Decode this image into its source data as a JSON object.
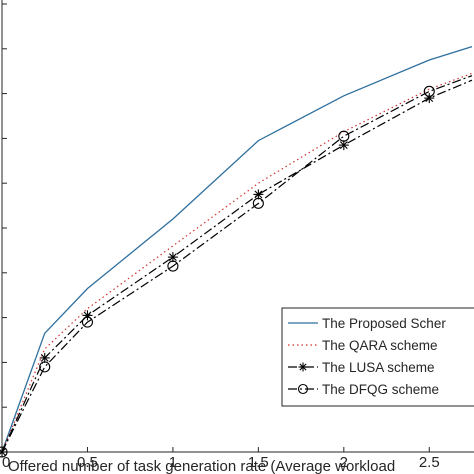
{
  "chart_data": {
    "type": "line",
    "title": "",
    "xlabel": "Offered number of task generation rate (Average workload",
    "ylabel": "",
    "x_ticks": [
      "0",
      "0.5",
      "1",
      "1.5",
      "2",
      "2.5"
    ],
    "xlim": [
      0,
      2.75
    ],
    "ylim": [
      0,
      1.0
    ],
    "grid": false,
    "legend_position": "bottom-right",
    "series": [
      {
        "name": "The Proposed Scher",
        "color": "#2e6f9e",
        "style": "solid",
        "marker": "none",
        "x": [
          0,
          0.25,
          0.5,
          1.0,
          1.5,
          2.0,
          2.5,
          2.75
        ],
        "y": [
          0.0,
          0.265,
          0.365,
          0.52,
          0.695,
          0.795,
          0.875,
          0.905
        ]
      },
      {
        "name": "The QARA scheme",
        "color": "#d03030",
        "style": "dotted",
        "marker": "none",
        "x": [
          0,
          0.25,
          0.5,
          1.0,
          1.5,
          2.0,
          2.5,
          2.75
        ],
        "y": [
          0.0,
          0.23,
          0.32,
          0.46,
          0.6,
          0.715,
          0.81,
          0.845
        ]
      },
      {
        "name": "The LUSA scheme",
        "color": "#000000",
        "style": "dashdot",
        "marker": "star",
        "x": [
          0,
          0.25,
          0.5,
          1.0,
          1.5,
          2.0,
          2.5,
          2.75
        ],
        "y": [
          0.0,
          0.21,
          0.305,
          0.435,
          0.575,
          0.685,
          0.79,
          0.83
        ]
      },
      {
        "name": "The DFQG scheme",
        "color": "#000000",
        "style": "dashdot",
        "marker": "circle",
        "x": [
          0,
          0.25,
          0.5,
          1.0,
          1.5,
          2.0,
          2.5,
          2.75
        ],
        "y": [
          0.0,
          0.19,
          0.29,
          0.415,
          0.555,
          0.705,
          0.805,
          0.84
        ]
      }
    ]
  }
}
